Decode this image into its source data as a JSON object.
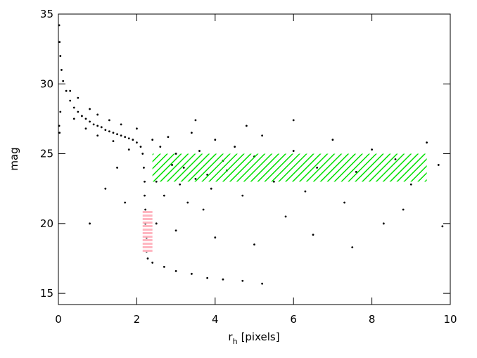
{
  "chart_data": {
    "type": "scatter",
    "xlabel": [
      "r",
      "h",
      "[pixels]"
    ],
    "ylabel": "mag",
    "xlim": [
      0,
      10
    ],
    "ylim": [
      14.2,
      35
    ],
    "xticks": [
      0,
      2,
      4,
      6,
      8,
      10
    ],
    "yticks": [
      15,
      20,
      25,
      30,
      35
    ],
    "color": "#000000",
    "x": [
      0.02,
      0.03,
      0.05,
      0.08,
      0.12,
      0.2,
      0.3,
      0.4,
      0.5,
      0.6,
      0.7,
      0.8,
      0.9,
      1.0,
      1.1,
      1.2,
      1.3,
      1.4,
      1.5,
      1.6,
      1.7,
      1.8,
      1.9,
      2.0,
      2.1,
      2.15,
      2.18,
      2.2,
      2.2,
      2.22,
      2.22,
      2.25,
      2.25,
      2.28,
      0.3,
      0.5,
      0.8,
      1.0,
      1.3,
      1.6,
      2.0,
      0.4,
      0.7,
      1.0,
      1.4,
      1.8,
      0.05,
      0.02,
      0.03,
      2.4,
      2.6,
      2.8,
      3.0,
      3.2,
      3.4,
      3.6,
      3.8,
      4.0,
      4.2,
      2.5,
      2.7,
      2.9,
      3.1,
      3.3,
      3.5,
      3.7,
      3.9,
      4.3,
      4.5,
      4.7,
      5.0,
      5.2,
      5.5,
      5.8,
      6.0,
      6.3,
      6.6,
      7.0,
      7.3,
      7.6,
      8.0,
      8.3,
      8.6,
      9.0,
      9.4,
      9.7,
      2.5,
      3.0,
      4.0,
      5.0,
      6.5,
      7.5,
      8.8,
      9.8,
      1.5,
      1.2,
      0.8,
      1.7,
      6.0,
      4.8,
      3.5,
      2.4,
      2.7,
      3.0,
      3.4,
      3.8,
      4.2,
      4.7,
      5.2
    ],
    "y": [
      34.2,
      33,
      32,
      31,
      30.2,
      29.5,
      28.8,
      28.3,
      28,
      27.7,
      27.5,
      27.3,
      27.1,
      27.0,
      26.9,
      26.7,
      26.6,
      26.5,
      26.4,
      26.3,
      26.2,
      26.1,
      26.0,
      25.8,
      25.5,
      25,
      24,
      23,
      22,
      21,
      20,
      19,
      18,
      17.5,
      29.5,
      29,
      28.2,
      27.8,
      27.4,
      27.1,
      26.8,
      27.5,
      26.8,
      26.3,
      25.9,
      25.3,
      28,
      27,
      26.5,
      26,
      25.5,
      26.2,
      25,
      24,
      26.5,
      25.2,
      23.5,
      26,
      24.5,
      23,
      22,
      24.2,
      22.8,
      21.5,
      23.2,
      21,
      22.5,
      23.8,
      25.5,
      22,
      24.8,
      26.3,
      23,
      20.5,
      25.2,
      22.3,
      24,
      26,
      21.5,
      23.7,
      25.3,
      20,
      24.6,
      22.8,
      25.8,
      24.2,
      20,
      19.5,
      19,
      18.5,
      19.2,
      18.3,
      21,
      19.8,
      24,
      22.5,
      20,
      21.5,
      27.4,
      27,
      27.4,
      17.2,
      16.9,
      16.6,
      16.4,
      16.1,
      16.0,
      15.9,
      15.7
    ],
    "regions": [
      {
        "color": "#00e000",
        "x": [
          2.4,
          9.4
        ],
        "y": [
          23,
          25
        ]
      },
      {
        "color": "#ffb6c1",
        "x": [
          2.15,
          2.4
        ],
        "y": [
          17.9,
          21
        ]
      }
    ]
  }
}
